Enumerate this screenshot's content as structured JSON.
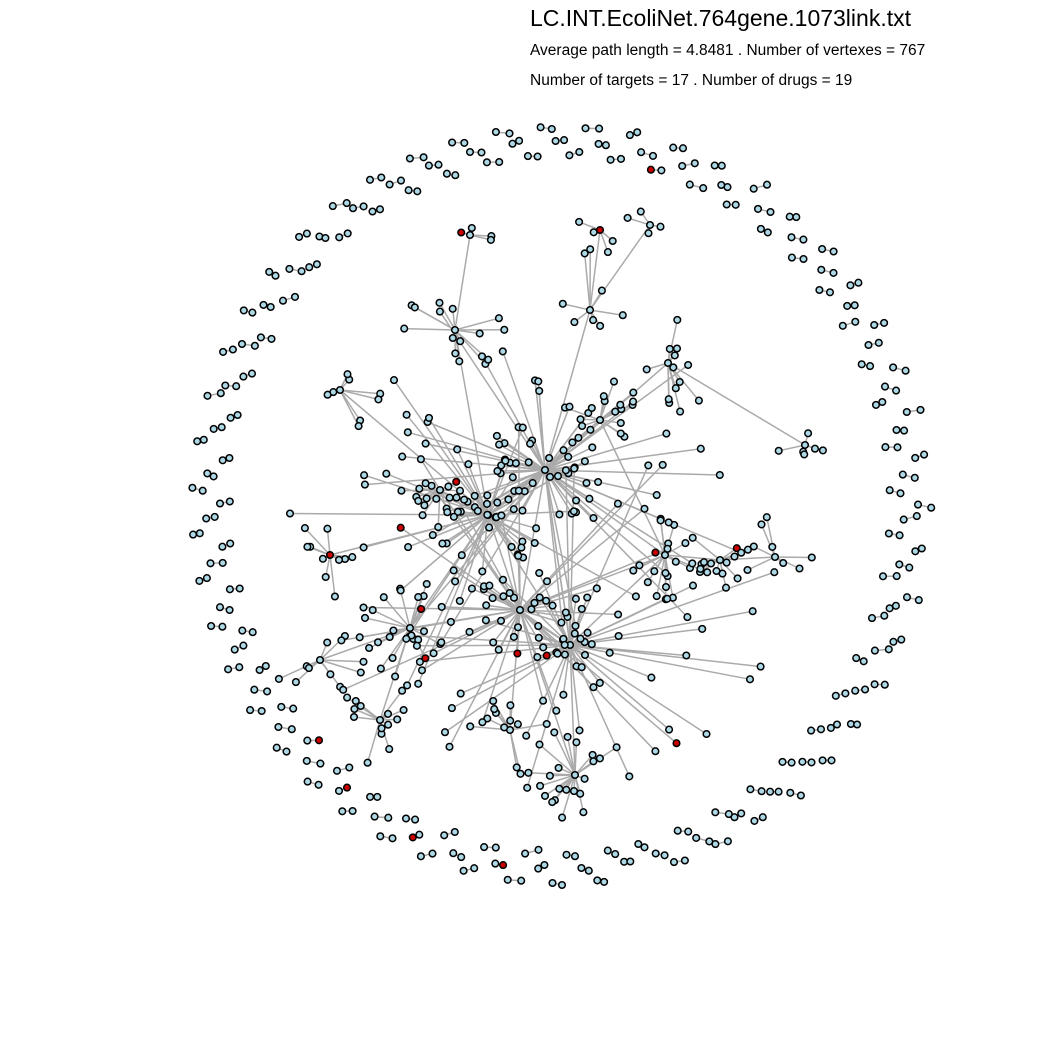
{
  "header": {
    "title": "LC.INT.EcoliNet.764gene.1073link.txt",
    "stats_line_1": "Average path length = 4.8481 . Number of vertexes = 767",
    "stats_line_2": "Number of targets = 17 . Number of drugs = 19"
  },
  "network": {
    "vertex_count": 767,
    "target_count": 17,
    "drug_count": 19,
    "colors": {
      "edge": "#aaaaaa",
      "node_fill": "#add8e6",
      "node_stroke": "#000000",
      "highlight_fill": "#cc0000"
    }
  }
}
